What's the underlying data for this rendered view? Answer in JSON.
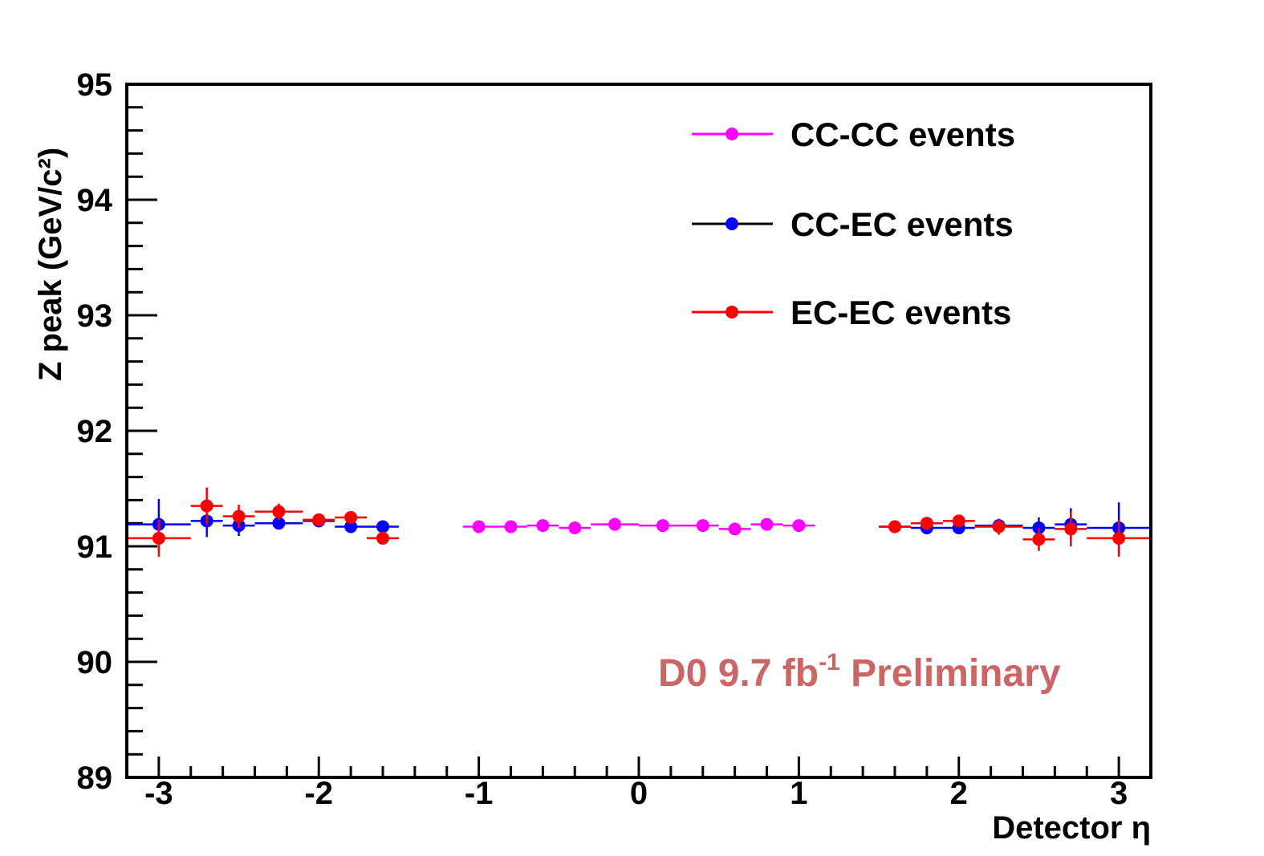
{
  "chart_data": {
    "type": "scatter",
    "title": "",
    "xlabel": "Detector η",
    "ylabel": "Z peak (GeV/c²)",
    "xlim": [
      -3.2,
      3.2
    ],
    "ylim": [
      89,
      95
    ],
    "x_ticks": [
      "-3",
      "-2",
      "-1",
      "0",
      "1",
      "2",
      "3"
    ],
    "y_ticks": [
      "89",
      "90",
      "91",
      "92",
      "93",
      "94",
      "95"
    ],
    "grid": false,
    "legend_position": "top-right",
    "annotation": {
      "text_main": "D0 9.7 fb",
      "text_sup": "-1",
      "text_rest": " Preliminary",
      "color": "#cc6666"
    },
    "series": [
      {
        "name": "CC-CC events",
        "color": "#ff00ff",
        "points": [
          {
            "x": -1.0,
            "y": 91.17,
            "xerr": 0.1,
            "yerr": 0.02
          },
          {
            "x": -0.8,
            "y": 91.17,
            "xerr": 0.1,
            "yerr": 0.02
          },
          {
            "x": -0.6,
            "y": 91.18,
            "xerr": 0.1,
            "yerr": 0.02
          },
          {
            "x": -0.4,
            "y": 91.16,
            "xerr": 0.1,
            "yerr": 0.02
          },
          {
            "x": -0.15,
            "y": 91.19,
            "xerr": 0.15,
            "yerr": 0.02
          },
          {
            "x": 0.15,
            "y": 91.18,
            "xerr": 0.15,
            "yerr": 0.02
          },
          {
            "x": 0.4,
            "y": 91.18,
            "xerr": 0.1,
            "yerr": 0.02
          },
          {
            "x": 0.6,
            "y": 91.15,
            "xerr": 0.1,
            "yerr": 0.02
          },
          {
            "x": 0.8,
            "y": 91.19,
            "xerr": 0.1,
            "yerr": 0.02
          },
          {
            "x": 1.0,
            "y": 91.18,
            "xerr": 0.1,
            "yerr": 0.02
          }
        ]
      },
      {
        "name": "CC-EC events",
        "color": "#0000ff",
        "points": [
          {
            "x": -3.0,
            "y": 91.19,
            "xerr": 0.2,
            "yerr": 0.22
          },
          {
            "x": -2.7,
            "y": 91.22,
            "xerr": 0.1,
            "yerr": 0.14
          },
          {
            "x": -2.5,
            "y": 91.18,
            "xerr": 0.1,
            "yerr": 0.09
          },
          {
            "x": -2.25,
            "y": 91.2,
            "xerr": 0.15,
            "yerr": 0.05
          },
          {
            "x": -2.0,
            "y": 91.22,
            "xerr": 0.1,
            "yerr": 0.04
          },
          {
            "x": -1.8,
            "y": 91.17,
            "xerr": 0.1,
            "yerr": 0.04
          },
          {
            "x": -1.6,
            "y": 91.17,
            "xerr": 0.1,
            "yerr": 0.04
          },
          {
            "x": 1.6,
            "y": 91.17,
            "xerr": 0.1,
            "yerr": 0.04
          },
          {
            "x": 1.8,
            "y": 91.16,
            "xerr": 0.1,
            "yerr": 0.04
          },
          {
            "x": 2.0,
            "y": 91.16,
            "xerr": 0.1,
            "yerr": 0.04
          },
          {
            "x": 2.25,
            "y": 91.18,
            "xerr": 0.15,
            "yerr": 0.05
          },
          {
            "x": 2.5,
            "y": 91.16,
            "xerr": 0.1,
            "yerr": 0.09
          },
          {
            "x": 2.7,
            "y": 91.19,
            "xerr": 0.1,
            "yerr": 0.14
          },
          {
            "x": 3.0,
            "y": 91.16,
            "xerr": 0.2,
            "yerr": 0.22
          }
        ]
      },
      {
        "name": "EC-EC events",
        "color": "#ff0000",
        "points": [
          {
            "x": -3.0,
            "y": 91.07,
            "xerr": 0.2,
            "yerr": 0.16
          },
          {
            "x": -2.7,
            "y": 91.35,
            "xerr": 0.1,
            "yerr": 0.16
          },
          {
            "x": -2.5,
            "y": 91.26,
            "xerr": 0.1,
            "yerr": 0.1
          },
          {
            "x": -2.25,
            "y": 91.3,
            "xerr": 0.15,
            "yerr": 0.07
          },
          {
            "x": -2.0,
            "y": 91.23,
            "xerr": 0.1,
            "yerr": 0.05
          },
          {
            "x": -1.8,
            "y": 91.25,
            "xerr": 0.1,
            "yerr": 0.05
          },
          {
            "x": -1.6,
            "y": 91.07,
            "xerr": 0.1,
            "yerr": 0.04
          },
          {
            "x": 1.6,
            "y": 91.17,
            "xerr": 0.1,
            "yerr": 0.04
          },
          {
            "x": 1.8,
            "y": 91.2,
            "xerr": 0.1,
            "yerr": 0.05
          },
          {
            "x": 2.0,
            "y": 91.22,
            "xerr": 0.1,
            "yerr": 0.05
          },
          {
            "x": 2.25,
            "y": 91.17,
            "xerr": 0.15,
            "yerr": 0.07
          },
          {
            "x": 2.5,
            "y": 91.06,
            "xerr": 0.1,
            "yerr": 0.1
          },
          {
            "x": 2.7,
            "y": 91.15,
            "xerr": 0.1,
            "yerr": 0.15
          },
          {
            "x": 3.0,
            "y": 91.07,
            "xerr": 0.2,
            "yerr": 0.16
          }
        ]
      }
    ]
  }
}
